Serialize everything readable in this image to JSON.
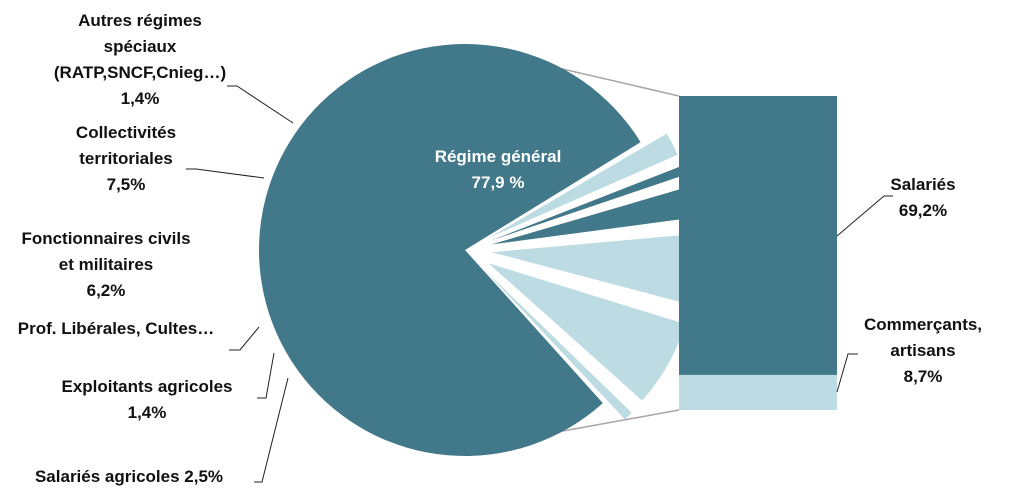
{
  "chart_data": {
    "type": "pie",
    "subtype": "pie-of-bar",
    "colors": {
      "dark": "#41788a",
      "light": "#bcdbe3"
    },
    "slices": [
      {
        "label": [
          "Régime général",
          "77,9 %"
        ],
        "value": 77.9,
        "color": "dark"
      },
      {
        "label": [
          "Salariés agricoles 2,5%"
        ],
        "value": 2.5,
        "color": "light"
      },
      {
        "label": [
          "Exploitants agricoles",
          "1,4%"
        ],
        "value": 1.4,
        "color": "dark"
      },
      {
        "label": [
          "Prof. Libérales, Cultes…"
        ],
        "value": 3.1,
        "color": "dark"
      },
      {
        "label": [
          "Fonctionnaires civils",
          "et militaires",
          "6,2%"
        ],
        "value": 6.2,
        "color": "light"
      },
      {
        "label": [
          "Collectivités",
          "territoriales",
          "7,5%"
        ],
        "value": 7.5,
        "color": "light"
      },
      {
        "label": [
          "Autres régimes",
          "spéciaux",
          "(RATP,SNCF,Cnieg…)",
          "1,4%"
        ],
        "value": 1.4,
        "color": "light"
      }
    ],
    "bar": {
      "parent": "Régime général",
      "segments": [
        {
          "label": [
            "Salariés",
            "69,2%"
          ],
          "value": 69.2,
          "color": "dark"
        },
        {
          "label": [
            "Commerçants,",
            "artisans",
            "8,7%"
          ],
          "value": 8.7,
          "color": "light"
        }
      ]
    }
  }
}
